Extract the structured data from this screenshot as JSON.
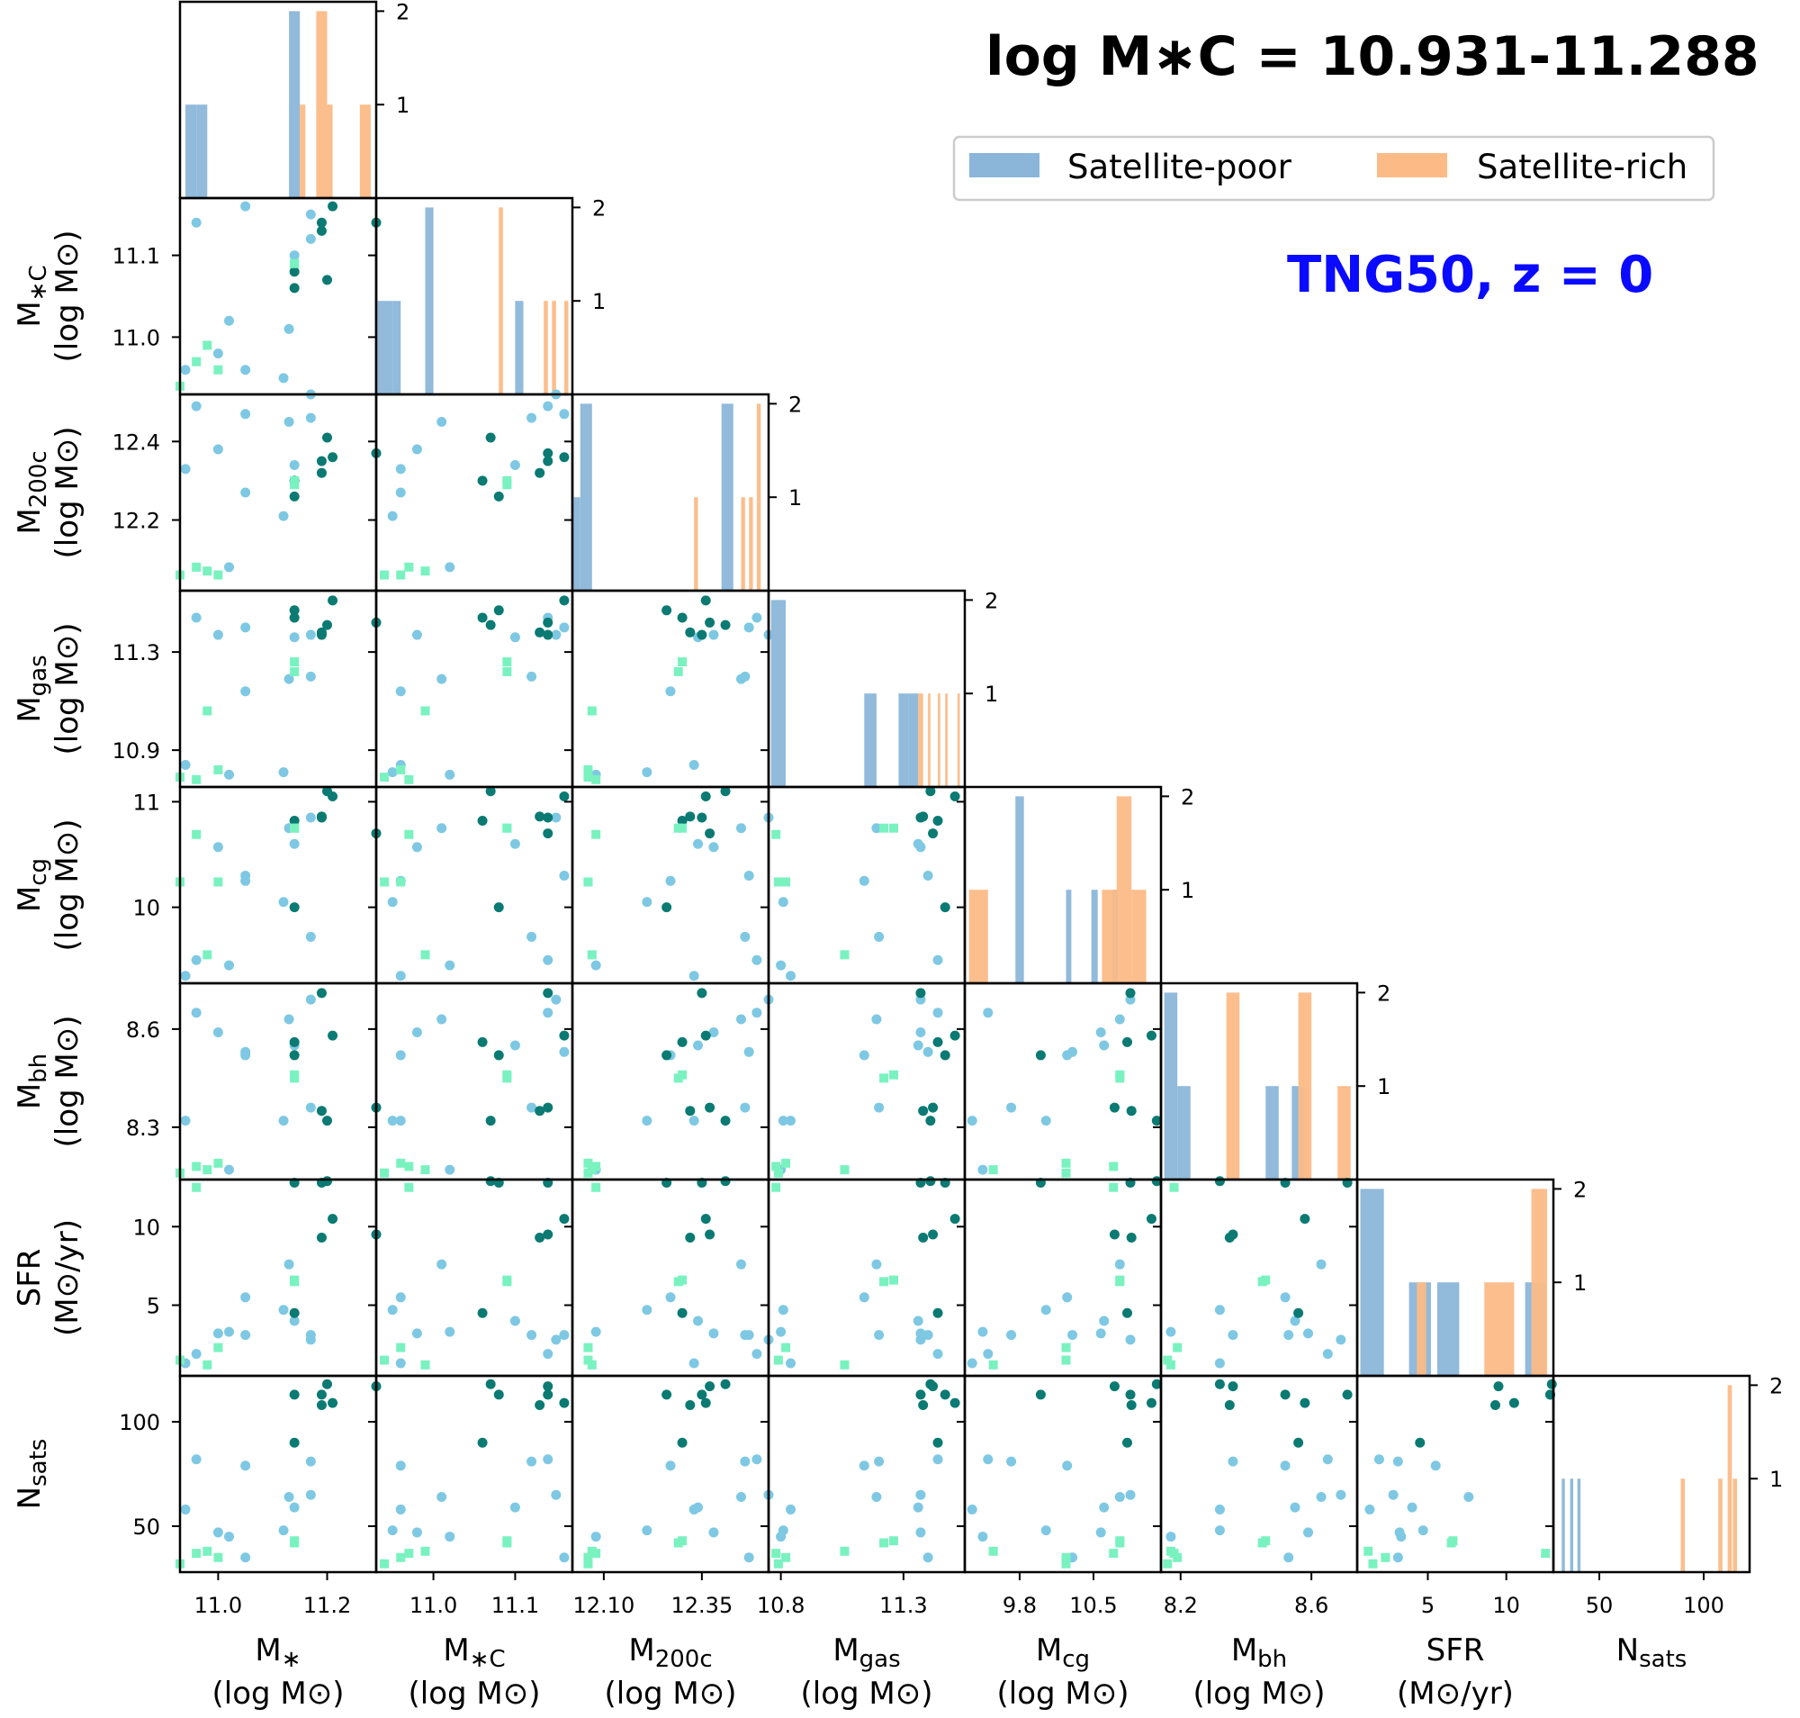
{
  "title": "log M∗C = 10.931-11.288",
  "subtitle": "TNG50, z = 0",
  "colors": {
    "poor": "#8bb6d9",
    "rich": "#fcbb86",
    "sat_poor_point": "#7ec8e3",
    "sat_rich_point": "#0b7a73",
    "mid_point": "#79f2c0",
    "subtitle": "#0a0aff"
  },
  "legend": [
    {
      "label": "Satellite-poor",
      "color": "#8bb6d9"
    },
    {
      "label": "Satellite-rich",
      "color": "#fcbb86"
    }
  ],
  "chart_data": {
    "type": "scatter",
    "variables": [
      {
        "name": "M*",
        "ylabel": [
          "",
          ""
        ],
        "xlabel": [
          "M∗",
          "(log M⊙)"
        ],
        "range": [
          10.93,
          11.29
        ],
        "ticks": [
          11.0,
          11.2
        ],
        "tick_labels": [
          "11.0",
          "11.2"
        ]
      },
      {
        "name": "M*C",
        "ylabel": [
          "M∗C",
          "(log M⊙)"
        ],
        "xlabel": [
          "M∗C",
          "(log M⊙)"
        ],
        "range": [
          10.93,
          11.17
        ],
        "ticks": [
          11.0,
          11.1
        ],
        "tick_labels": [
          "11.0",
          "11.1"
        ]
      },
      {
        "name": "M200c",
        "ylabel": [
          "M200c",
          "(log M⊙)"
        ],
        "xlabel": [
          "M200c",
          "(log M⊙)"
        ],
        "range": [
          12.02,
          12.52
        ],
        "ticks": [
          12.2,
          12.4
        ],
        "tick_labels": [
          "12.2",
          "12.4"
        ],
        "xticks": [
          12.1,
          12.35
        ],
        "xtick_labels": [
          "12.10",
          "12.35"
        ]
      },
      {
        "name": "Mgas",
        "ylabel": [
          "Mgas",
          "(log M⊙)"
        ],
        "xlabel": [
          "Mgas",
          "(log M⊙)"
        ],
        "range": [
          10.75,
          11.55
        ],
        "ticks": [
          10.9,
          11.3
        ],
        "tick_labels": [
          "10.9",
          "11.3"
        ],
        "xticks": [
          10.8,
          11.3
        ],
        "xtick_labels": [
          "10.8",
          "11.3"
        ]
      },
      {
        "name": "Mcg",
        "ylabel": [
          "Mcg",
          "(log M⊙)"
        ],
        "xlabel": [
          "Mcg",
          "(log M⊙)"
        ],
        "range": [
          9.28,
          11.14
        ],
        "ticks": [
          10,
          11
        ],
        "tick_labels": [
          "10",
          "11"
        ],
        "xticks": [
          9.8,
          10.5
        ],
        "xtick_labels": [
          "9.8",
          "10.5"
        ]
      },
      {
        "name": "Mbh",
        "ylabel": [
          "Mbh",
          "(log M⊙)"
        ],
        "xlabel": [
          "Mbh",
          "(log M⊙)"
        ],
        "range": [
          8.14,
          8.74
        ],
        "ticks": [
          8.3,
          8.6
        ],
        "tick_labels": [
          "8.3",
          "8.6"
        ],
        "xticks": [
          8.2,
          8.6
        ],
        "xtick_labels": [
          "8.2",
          "8.6"
        ]
      },
      {
        "name": "SFR",
        "ylabel": [
          "SFR",
          "(M⊙/yr)"
        ],
        "xlabel": [
          "SFR",
          "(M⊙/yr)"
        ],
        "range": [
          0.5,
          13.0
        ],
        "ticks": [
          5,
          10
        ],
        "tick_labels": [
          "5",
          "10"
        ]
      },
      {
        "name": "Nsats",
        "ylabel": [
          "Nsats",
          ""
        ],
        "xlabel": [
          "Nsats",
          ""
        ],
        "range": [
          28,
          122
        ],
        "ticks": [
          50,
          100
        ],
        "tick_labels": [
          "50",
          "100"
        ]
      }
    ],
    "points": [
      {
        "cls": "p",
        "v": [
          10.94,
          10.96,
          12.33,
          10.84,
          9.35,
          8.32,
          1.3,
          58
        ]
      },
      {
        "cls": "p",
        "v": [
          11.02,
          11.02,
          12.08,
          10.8,
          9.45,
          8.17,
          3.3,
          45
        ]
      },
      {
        "cls": "p",
        "v": [
          11.05,
          10.96,
          12.27,
          11.14,
          10.25,
          8.52,
          5.5,
          79
        ]
      },
      {
        "cls": "p",
        "v": [
          11.05,
          11.16,
          12.47,
          11.4,
          10.3,
          8.53,
          3.1,
          35
        ]
      },
      {
        "cls": "p",
        "v": [
          11.12,
          10.95,
          12.21,
          10.81,
          10.05,
          8.32,
          4.7,
          48
        ]
      },
      {
        "cls": "p",
        "v": [
          11.13,
          11.01,
          12.45,
          11.19,
          10.75,
          8.63,
          7.6,
          64
        ]
      },
      {
        "cls": "p",
        "v": [
          11.14,
          11.1,
          12.34,
          11.36,
          10.6,
          8.55,
          4.0,
          59
        ]
      },
      {
        "cls": "p",
        "v": [
          11.17,
          11.12,
          12.46,
          11.2,
          9.72,
          8.36,
          3.1,
          81
        ]
      },
      {
        "cls": "p",
        "v": [
          11.17,
          11.15,
          12.52,
          11.37,
          10.85,
          8.69,
          2.8,
          65
        ]
      },
      {
        "cls": "p",
        "v": [
          11.0,
          10.98,
          12.38,
          11.37,
          10.57,
          8.59,
          3.2,
          47
        ]
      },
      {
        "cls": "p",
        "v": [
          10.96,
          11.14,
          12.49,
          11.44,
          9.5,
          8.65,
          1.9,
          82
        ]
      },
      {
        "cls": "r",
        "v": [
          11.14,
          11.08,
          12.26,
          11.47,
          10.0,
          8.52,
          12.8,
          113
        ]
      },
      {
        "cls": "r",
        "v": [
          11.14,
          11.06,
          12.3,
          11.44,
          10.82,
          8.56,
          4.5,
          90
        ]
      },
      {
        "cls": "r",
        "v": [
          11.19,
          11.13,
          12.32,
          11.38,
          10.86,
          8.35,
          9.3,
          108
        ]
      },
      {
        "cls": "r",
        "v": [
          11.19,
          11.14,
          12.35,
          11.37,
          10.85,
          8.71,
          12.8,
          113
        ]
      },
      {
        "cls": "r",
        "v": [
          11.2,
          11.07,
          12.41,
          11.41,
          11.1,
          8.32,
          12.9,
          118
        ]
      },
      {
        "cls": "r",
        "v": [
          11.29,
          11.14,
          12.37,
          11.42,
          10.7,
          8.36,
          9.5,
          117
        ]
      },
      {
        "cls": "r",
        "v": [
          11.21,
          11.16,
          12.36,
          11.51,
          11.05,
          8.58,
          10.5,
          109
        ]
      },
      {
        "cls": "m",
        "v": [
          11.14,
          11.09,
          12.29,
          11.22,
          10.75,
          8.45,
          6.5,
          42
        ]
      },
      {
        "cls": "m",
        "v": [
          11.14,
          11.09,
          12.3,
          11.26,
          10.75,
          8.46,
          6.6,
          43
        ]
      },
      {
        "cls": "m",
        "v": [
          10.98,
          10.99,
          12.07,
          11.06,
          9.55,
          8.17,
          1.2,
          38
        ]
      },
      {
        "cls": "m",
        "v": [
          10.93,
          10.94,
          12.06,
          10.79,
          10.24,
          8.16,
          1.5,
          32
        ]
      },
      {
        "cls": "m",
        "v": [
          10.96,
          10.97,
          12.08,
          10.78,
          10.69,
          8.18,
          12.5,
          37
        ]
      },
      {
        "cls": "m",
        "v": [
          11.0,
          10.96,
          12.06,
          10.82,
          10.24,
          8.19,
          2.3,
          35
        ]
      }
    ],
    "histograms": [
      {
        "var": "M*",
        "ylim": [
          0,
          2.1
        ],
        "yticks": [
          1,
          2
        ],
        "poor": [
          {
            "x0": 10.94,
            "x1": 10.96,
            "h": 1
          },
          {
            "x0": 10.96,
            "x1": 10.98,
            "h": 1
          },
          {
            "x0": 11.13,
            "x1": 11.15,
            "h": 2
          }
        ],
        "rich": [
          {
            "x0": 11.15,
            "x1": 11.16,
            "h": 1
          },
          {
            "x0": 11.18,
            "x1": 11.2,
            "h": 2
          },
          {
            "x0": 11.2,
            "x1": 11.21,
            "h": 1
          },
          {
            "x0": 11.26,
            "x1": 11.28,
            "h": 1
          }
        ]
      },
      {
        "var": "M*C",
        "ylim": [
          0,
          2.1
        ],
        "yticks": [
          1,
          2
        ],
        "poor": [
          {
            "x0": 10.93,
            "x1": 10.95,
            "h": 1
          },
          {
            "x0": 10.95,
            "x1": 10.96,
            "h": 1
          },
          {
            "x0": 10.99,
            "x1": 11.0,
            "h": 2
          },
          {
            "x0": 11.1,
            "x1": 11.11,
            "h": 1
          }
        ],
        "rich": [
          {
            "x0": 11.08,
            "x1": 11.085,
            "h": 2
          },
          {
            "x0": 11.135,
            "x1": 11.14,
            "h": 1
          },
          {
            "x0": 11.145,
            "x1": 11.15,
            "h": 1
          },
          {
            "x0": 11.16,
            "x1": 11.165,
            "h": 1
          }
        ]
      },
      {
        "var": "M200c",
        "ylim": [
          0,
          2.1
        ],
        "yticks": [
          1,
          2
        ],
        "poor": [
          {
            "x0": 12.02,
            "x1": 12.04,
            "h": 1
          },
          {
            "x0": 12.04,
            "x1": 12.07,
            "h": 2
          },
          {
            "x0": 12.4,
            "x1": 12.43,
            "h": 2
          }
        ],
        "rich": [
          {
            "x0": 12.33,
            "x1": 12.34,
            "h": 1
          },
          {
            "x0": 12.45,
            "x1": 12.46,
            "h": 1
          },
          {
            "x0": 12.47,
            "x1": 12.48,
            "h": 1
          },
          {
            "x0": 12.49,
            "x1": 12.5,
            "h": 2
          }
        ]
      },
      {
        "var": "Mgas",
        "ylim": [
          0,
          2.1
        ],
        "yticks": [
          1,
          2
        ],
        "poor": [
          {
            "x0": 10.76,
            "x1": 10.82,
            "h": 2
          },
          {
            "x0": 11.14,
            "x1": 11.19,
            "h": 1
          },
          {
            "x0": 11.28,
            "x1": 11.32,
            "h": 1
          },
          {
            "x0": 11.32,
            "x1": 11.36,
            "h": 1
          }
        ],
        "rich": [
          {
            "x0": 11.36,
            "x1": 11.38,
            "h": 1
          },
          {
            "x0": 11.4,
            "x1": 11.41,
            "h": 1
          },
          {
            "x0": 11.44,
            "x1": 11.45,
            "h": 1
          },
          {
            "x0": 11.47,
            "x1": 11.48,
            "h": 1
          },
          {
            "x0": 11.52,
            "x1": 11.53,
            "h": 1
          }
        ]
      },
      {
        "var": "Mcg",
        "ylim": [
          0,
          2.1
        ],
        "yticks": [
          1,
          2
        ],
        "poor": [
          {
            "x0": 9.76,
            "x1": 9.84,
            "h": 2
          },
          {
            "x0": 10.24,
            "x1": 10.29,
            "h": 1
          },
          {
            "x0": 10.48,
            "x1": 10.54,
            "h": 1
          },
          {
            "x0": 10.68,
            "x1": 10.73,
            "h": 1
          }
        ],
        "rich": [
          {
            "x0": 9.32,
            "x1": 9.5,
            "h": 1
          },
          {
            "x0": 10.58,
            "x1": 10.72,
            "h": 1
          },
          {
            "x0": 10.72,
            "x1": 10.86,
            "h": 2
          },
          {
            "x0": 10.86,
            "x1": 11.0,
            "h": 1
          }
        ]
      },
      {
        "var": "Mbh",
        "ylim": [
          0,
          2.1
        ],
        "yticks": [
          1,
          2
        ],
        "poor": [
          {
            "x0": 8.15,
            "x1": 8.19,
            "h": 2
          },
          {
            "x0": 8.19,
            "x1": 8.23,
            "h": 1
          },
          {
            "x0": 8.46,
            "x1": 8.5,
            "h": 1
          },
          {
            "x0": 8.54,
            "x1": 8.58,
            "h": 1
          }
        ],
        "rich": [
          {
            "x0": 8.34,
            "x1": 8.38,
            "h": 2
          },
          {
            "x0": 8.56,
            "x1": 8.6,
            "h": 2
          },
          {
            "x0": 8.68,
            "x1": 8.72,
            "h": 1
          }
        ]
      },
      {
        "var": "SFR",
        "ylim": [
          0,
          2.1
        ],
        "yticks": [
          1,
          2
        ],
        "poor": [
          {
            "x0": 0.7,
            "x1": 2.2,
            "h": 2
          },
          {
            "x0": 3.8,
            "x1": 5.2,
            "h": 1
          },
          {
            "x0": 5.6,
            "x1": 7.0,
            "h": 1
          },
          {
            "x0": 11.2,
            "x1": 12.5,
            "h": 1
          }
        ],
        "rich": [
          {
            "x0": 4.3,
            "x1": 4.9,
            "h": 1
          },
          {
            "x0": 8.6,
            "x1": 10.5,
            "h": 1
          },
          {
            "x0": 11.6,
            "x1": 12.6,
            "h": 2
          }
        ]
      },
      {
        "var": "Nsats",
        "ylim": [
          0,
          2.1
        ],
        "yticks": [
          1,
          2
        ],
        "poor": [
          {
            "x0": 32,
            "x1": 33.5,
            "h": 1
          },
          {
            "x0": 36,
            "x1": 37.5,
            "h": 1
          },
          {
            "x0": 39.5,
            "x1": 41,
            "h": 1
          }
        ],
        "rich": [
          {
            "x0": 89,
            "x1": 91,
            "h": 1
          },
          {
            "x0": 107,
            "x1": 109,
            "h": 1
          },
          {
            "x0": 111.5,
            "x1": 113.5,
            "h": 2
          },
          {
            "x0": 114,
            "x1": 116,
            "h": 1
          }
        ]
      }
    ]
  }
}
